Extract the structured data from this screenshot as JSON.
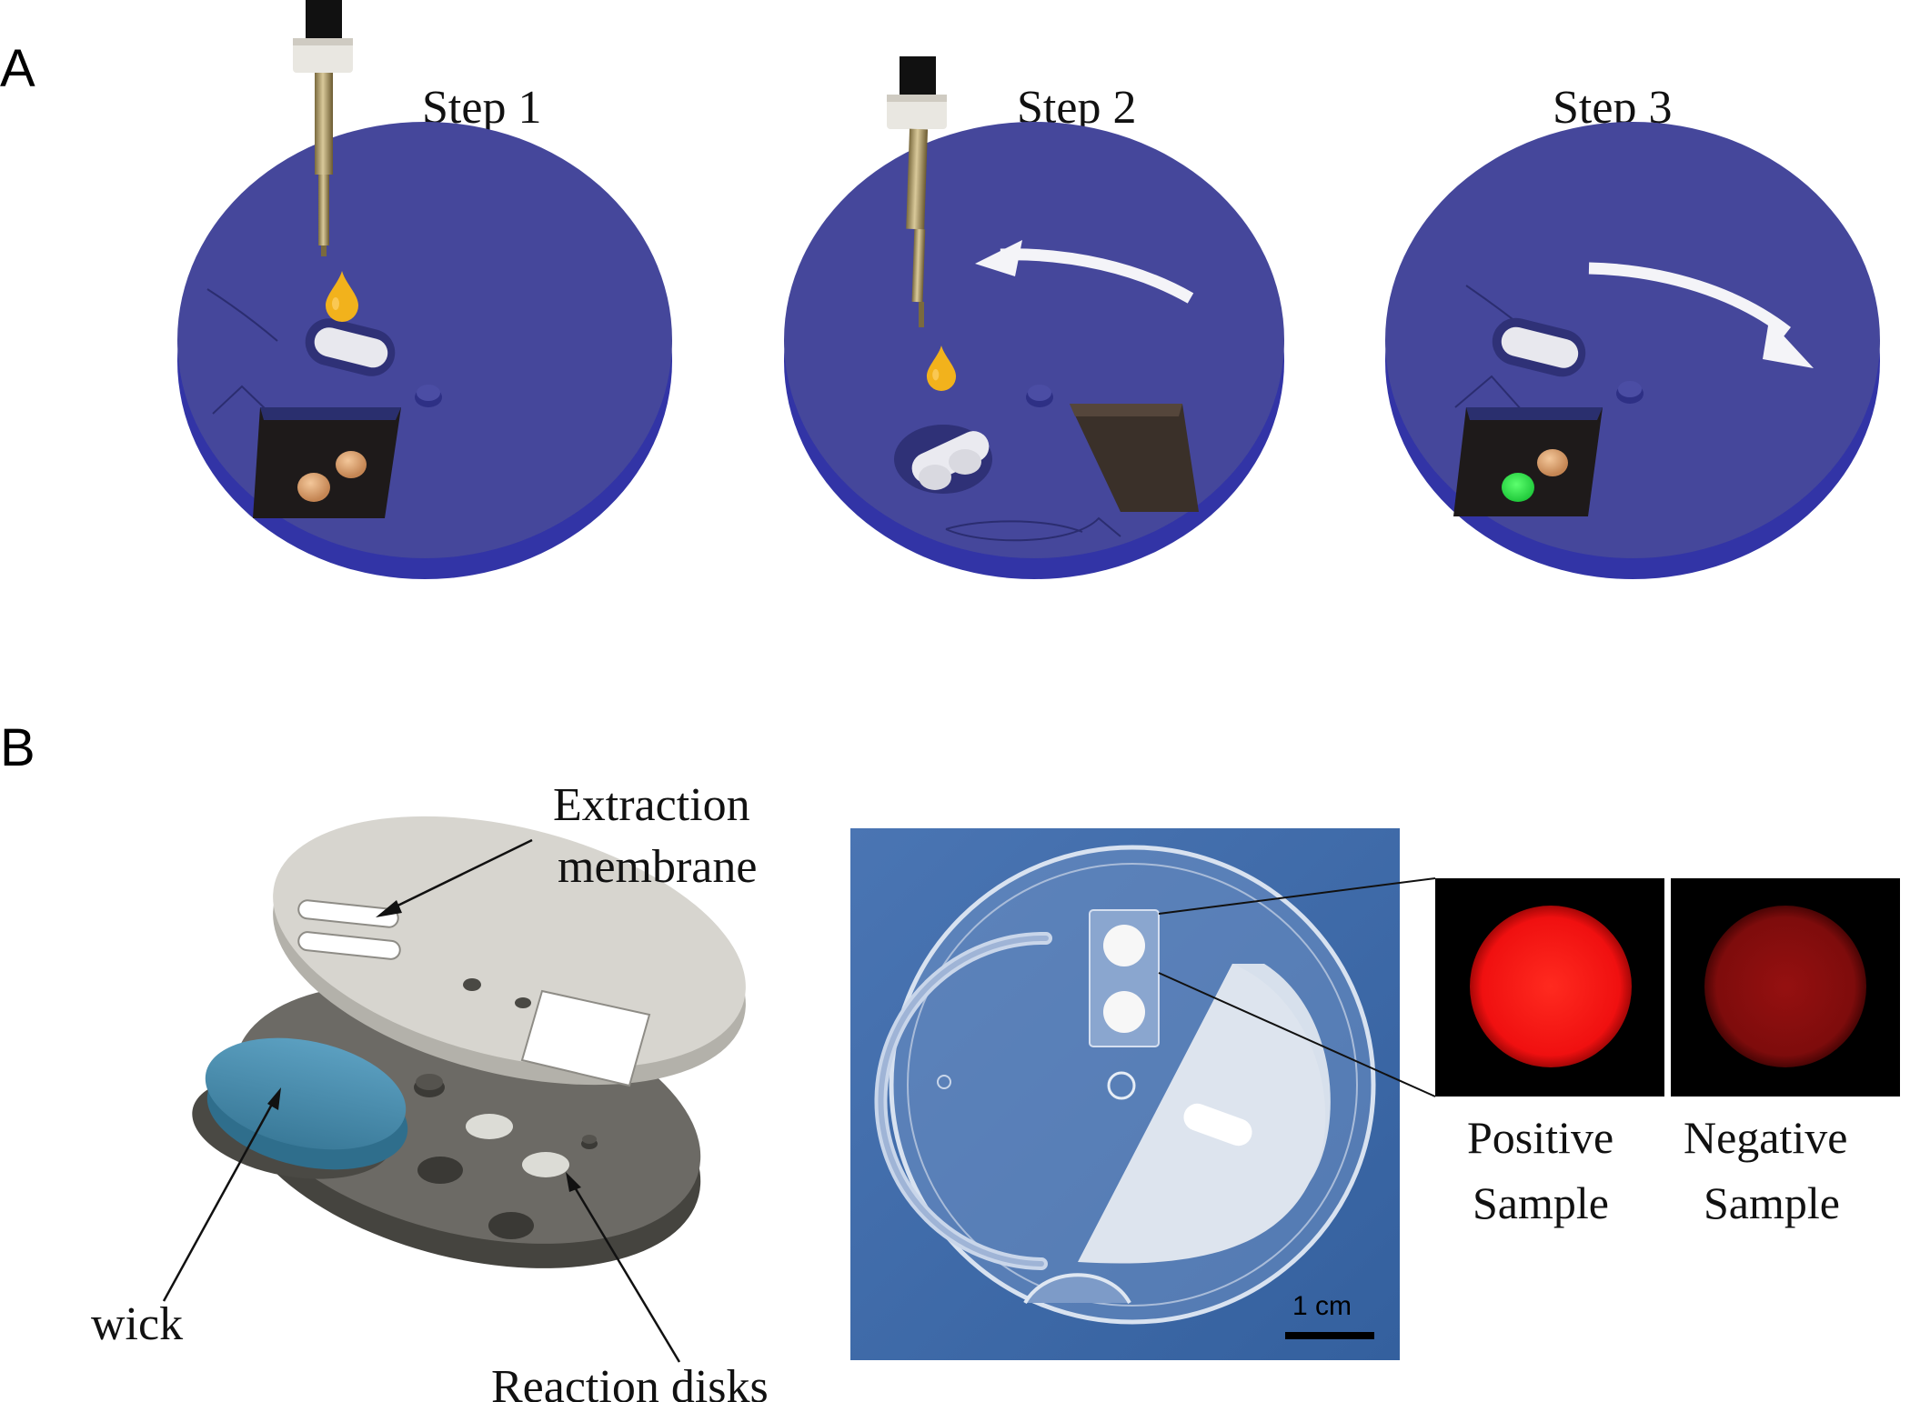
{
  "panel_a": {
    "label": "A",
    "steps": [
      "Step 1",
      "Step 2",
      "Step 3"
    ]
  },
  "panel_b": {
    "label": "B",
    "callouts": {
      "extraction_line1": "Extraction",
      "extraction_line2": "membrane",
      "wick": "wick",
      "reaction_disks": "Reaction disks"
    },
    "scale_bar": "1 cm",
    "samples": {
      "positive_line1": "Positive",
      "positive_line2": "Sample",
      "negative_line1": "Negative",
      "negative_line2": "Sample"
    }
  },
  "colors": {
    "device_top": "#45479b",
    "device_side": "#3436a8",
    "droplet": "#f2b21c",
    "positive_signal": "#ff1a1a",
    "negative_signal": "#8c0f0f",
    "green_signal": "#29e34a",
    "photo_background": "#3f6aa8",
    "top_layer": "#d7d5cf",
    "bottom_layer": "#5f5d59",
    "wick": "#4d8fb0"
  }
}
